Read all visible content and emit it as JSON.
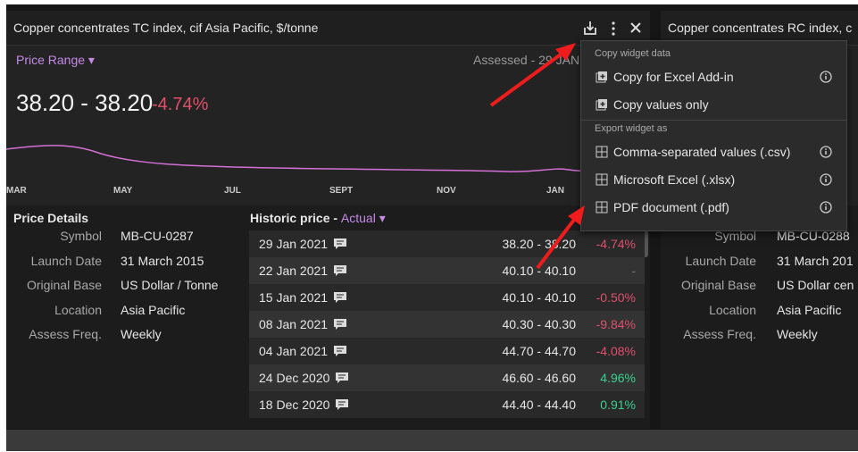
{
  "left_widget": {
    "title": "Copper concentrates TC index, cif Asia Pacific, $/tonne",
    "range_selector": "Price Range",
    "assessed": "Assessed - 29 JAN",
    "price": "38.20 - 38.20",
    "change": "-4.74%",
    "x_axis": [
      "MAR",
      "MAY",
      "JUL",
      "SEPT",
      "NOV",
      "JAN"
    ],
    "details": {
      "title": "Price Details",
      "rows": [
        [
          "Symbol",
          "MB-CU-0287"
        ],
        [
          "Launch Date",
          "31 March 2015"
        ],
        [
          "Original Base",
          "US Dollar / Tonne"
        ],
        [
          "Location",
          "Asia Pacific"
        ],
        [
          "Assess Freq.",
          "Weekly"
        ]
      ]
    },
    "history": {
      "title": "Historic price - ",
      "mode": "Actual",
      "rows": [
        [
          "29 Jan 2021",
          "38.20 - 38.20",
          "-4.74%"
        ],
        [
          "22 Jan 2021",
          "40.10 - 40.10",
          "-"
        ],
        [
          "15 Jan 2021",
          "40.10 - 40.10",
          "-0.50%"
        ],
        [
          "08 Jan 2021",
          "40.30 - 40.30",
          "-9.84%"
        ],
        [
          "04 Jan 2021",
          "44.70 - 44.70",
          "-4.08%"
        ],
        [
          "24 Dec 2020",
          "46.60 - 46.60",
          "4.96%"
        ],
        [
          "18 Dec 2020",
          "44.40 - 44.40",
          "0.91%"
        ]
      ]
    }
  },
  "menu": {
    "sections": [
      {
        "title": "Copy widget data",
        "items": [
          "Copy for Excel Add-in",
          "Copy values only"
        ]
      },
      {
        "title": "Export widget as",
        "items": [
          "Comma-separated values (.csv)",
          "Microsoft Excel (.xlsx)",
          "PDF document (.pdf)"
        ]
      }
    ]
  },
  "right_widget": {
    "title": "Copper concentrates RC index, c",
    "rows": [
      [
        "Symbol",
        "MB-CU-0288"
      ],
      [
        "Launch Date",
        "31 March 201"
      ],
      [
        "Original Base",
        "US Dollar cen"
      ],
      [
        "Location",
        "Asia Pacific"
      ],
      [
        "Assess Freq.",
        "Weekly"
      ]
    ]
  }
}
